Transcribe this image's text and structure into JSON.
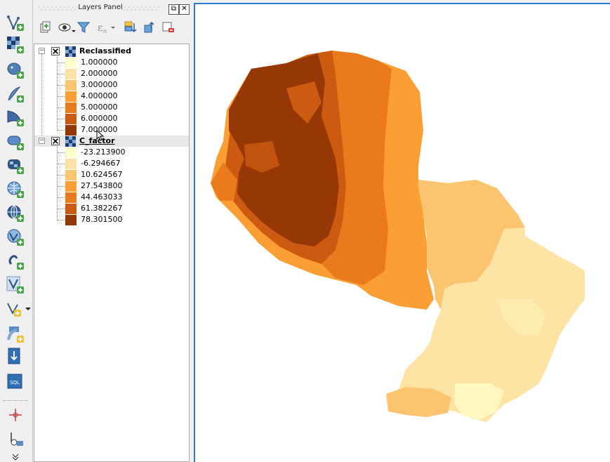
{
  "panel": {
    "title": "Layers Panel",
    "float_button": "⧉",
    "close_button": "✕"
  },
  "toolbar": {
    "icons": [
      "add-vector-layer-icon",
      "add-raster-layer-icon",
      "add-postgis-layer-icon",
      "add-spatialite-layer-icon",
      "add-mssql-layer-icon",
      "add-oracle-layer-icon",
      "add-db2-layer-icon",
      "add-wms-layer-icon",
      "add-wcs-layer-icon",
      "add-wfs-layer-icon",
      "add-delimited-text-layer-icon",
      "add-virtual-layer-icon",
      "new-vector-layer-icon",
      "new-spatialite-layer-icon",
      "import-layer-icon",
      "sql-icon",
      "digitize-icon",
      "node-tool-icon"
    ]
  },
  "layers": [
    {
      "name": "Reclassified",
      "checked": true,
      "legend": [
        {
          "label": "1.000000",
          "color": "#fffecf"
        },
        {
          "label": "2.000000",
          "color": "#fde3a4"
        },
        {
          "label": "3.000000",
          "color": "#fdc46f"
        },
        {
          "label": "4.000000",
          "color": "#fb9f35"
        },
        {
          "label": "5.000000",
          "color": "#ea7a1c"
        },
        {
          "label": "6.000000",
          "color": "#cc5a10"
        },
        {
          "label": "7.000000",
          "color": "#953806"
        }
      ]
    },
    {
      "name": "C_factor",
      "checked": true,
      "legend": [
        {
          "label": "-23.213900",
          "color": "#fffecf"
        },
        {
          "label": "-6.294667",
          "color": "#fde3a4"
        },
        {
          "label": "10.624567",
          "color": "#fdc46f"
        },
        {
          "label": "27.543800",
          "color": "#fb9f35"
        },
        {
          "label": "44.463033",
          "color": "#ea7a1c"
        },
        {
          "label": "61.382267",
          "color": "#cc5a10"
        },
        {
          "label": "78.301500",
          "color": "#953806"
        }
      ]
    }
  ],
  "colors": {
    "accent": "#2a7fd4",
    "selected_row": "#e8e8e8"
  }
}
